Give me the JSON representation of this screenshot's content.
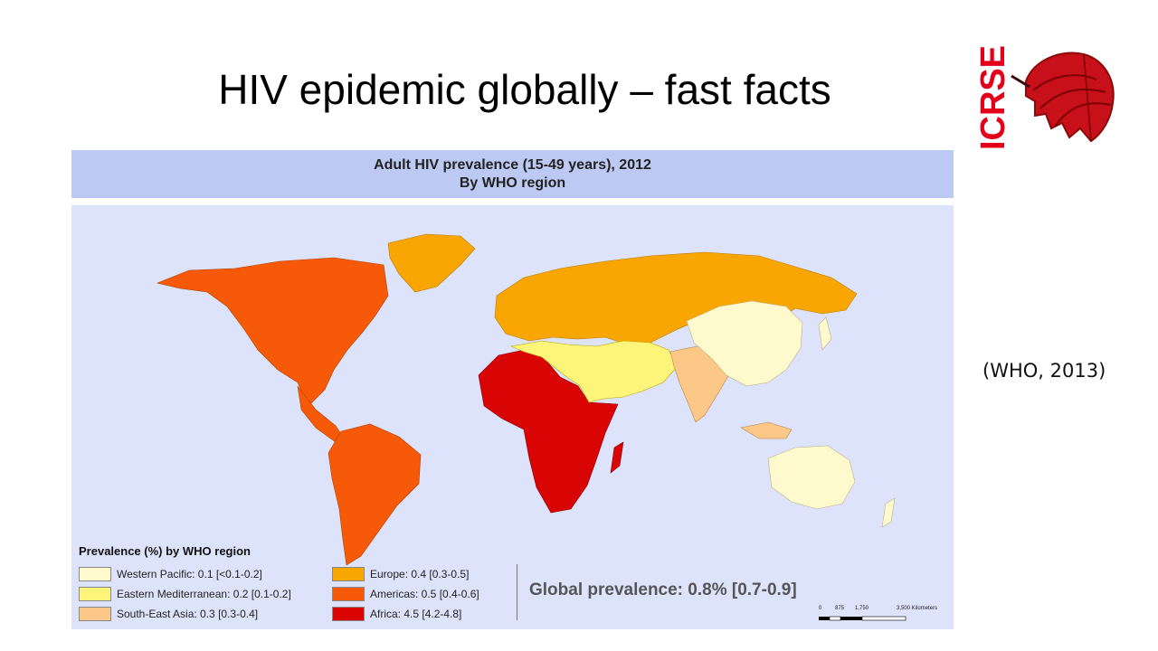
{
  "slide": {
    "title": "HIV epidemic globally – fast facts",
    "citation": "(WHO, 2013)"
  },
  "logo": {
    "text": "ICRSE",
    "icon": "red-umbrella-icon",
    "color": "#e2001a"
  },
  "figure": {
    "title_line1": "Adult HIV prevalence (15-49 years), 2012",
    "title_line2": "By WHO region",
    "legend_title": "Prevalence (%) by WHO region",
    "legend": [
      {
        "region": "Western Pacific",
        "label": "Western Pacific: 0.1 [<0.1-0.2]",
        "value": 0.1,
        "color": "#fffacd"
      },
      {
        "region": "Eastern Mediterranean",
        "label": "Eastern Mediterranean: 0.2 [0.1-0.2]",
        "value": 0.2,
        "color": "#fdf57a"
      },
      {
        "region": "South-East Asia",
        "label": "South-East Asia: 0.3 [0.3-0.4]",
        "value": 0.3,
        "color": "#fcc887"
      },
      {
        "region": "Europe",
        "label": "Europe: 0.4 [0.3-0.5]",
        "value": 0.4,
        "color": "#f9a602"
      },
      {
        "region": "Americas",
        "label": "Americas: 0.5 [0.4-0.6]",
        "value": 0.5,
        "color": "#f65a08"
      },
      {
        "region": "Africa",
        "label": "Africa: 4.5 [4.2-4.8]",
        "value": 4.5,
        "color": "#d90404"
      }
    ],
    "global_prevalence": "Global prevalence: 0.8% [0.7-0.9]",
    "scale_labels": [
      "0",
      "875",
      "1,750",
      "3,500 Kilometers"
    ],
    "ocean_color": "#dde3fb",
    "header_color": "#bcc9f2"
  }
}
